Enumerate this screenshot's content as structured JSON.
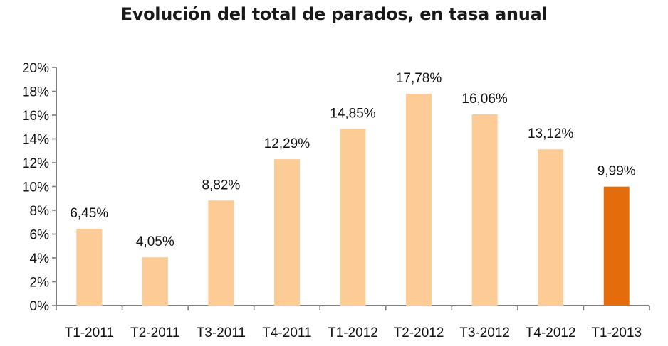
{
  "chart_data": {
    "type": "bar",
    "title": "Evolución del total de parados, en tasa anual",
    "categories": [
      "T1-2011",
      "T2-2011",
      "T3-2011",
      "T4-2011",
      "T1-2012",
      "T2-2012",
      "T3-2012",
      "T4-2012",
      "T1-2013"
    ],
    "values": [
      6.45,
      4.05,
      8.82,
      12.29,
      14.85,
      17.78,
      16.06,
      13.12,
      9.99
    ],
    "data_labels": [
      "6,45%",
      "4,05%",
      "8,82%",
      "12,29%",
      "14,85%",
      "17,78%",
      "16,06%",
      "13,12%",
      "9,99%"
    ],
    "y_ticks": [
      0,
      2,
      4,
      6,
      8,
      10,
      12,
      14,
      16,
      18,
      20
    ],
    "y_tick_labels": [
      "0%",
      "2%",
      "4%",
      "6%",
      "8%",
      "10%",
      "12%",
      "14%",
      "16%",
      "18%",
      "20%"
    ],
    "ylim": [
      0,
      20
    ],
    "grid": false,
    "legend": "none",
    "colors": {
      "bar": "#fccb96",
      "highlight_bar": "#e46c0a",
      "axis": "#7f7f7f"
    },
    "highlight_index": 8
  }
}
